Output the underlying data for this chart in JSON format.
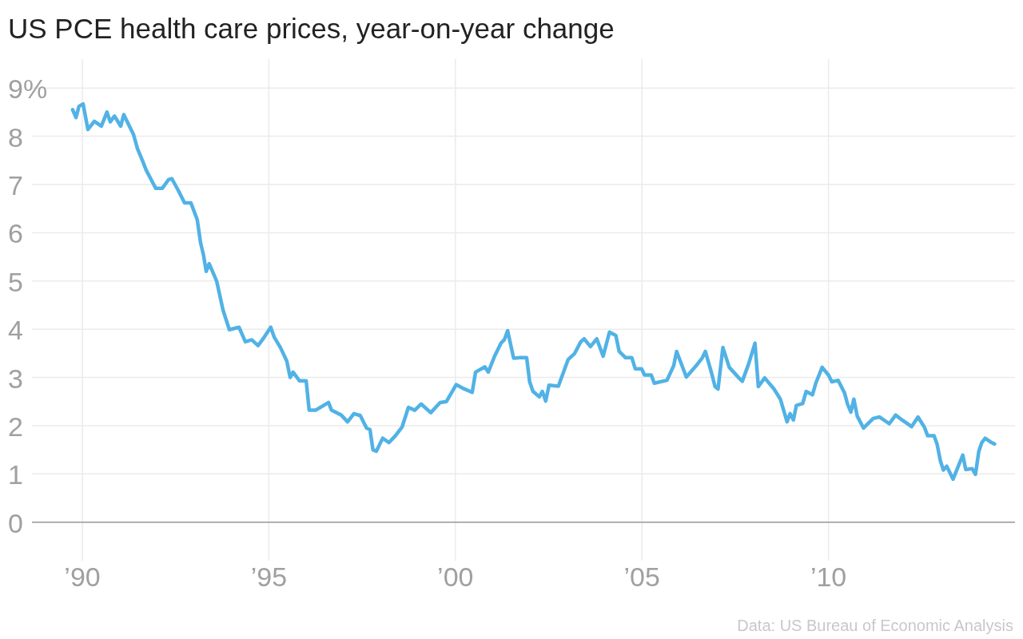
{
  "chart_data": {
    "type": "line",
    "title": "US PCE health care prices, year-on-year change",
    "annotations": [
      "Data: US Bureau of Economic Analysis"
    ],
    "x": [
      1989.74,
      1989.83,
      1989.91,
      1990.02,
      1990.15,
      1990.32,
      1990.51,
      1990.66,
      1990.75,
      1990.86,
      1991.03,
      1991.11,
      1991.37,
      1991.48,
      1991.63,
      1991.71,
      1991.88,
      1991.97,
      1992.14,
      1992.31,
      1992.4,
      1992.57,
      1992.74,
      1992.91,
      1993.08,
      1993.17,
      1993.25,
      1993.32,
      1993.4,
      1993.6,
      1993.77,
      1993.94,
      1994.2,
      1994.37,
      1994.54,
      1994.71,
      1994.88,
      1995.05,
      1995.14,
      1995.31,
      1995.48,
      1995.57,
      1995.65,
      1995.82,
      1996.0,
      1996.08,
      1996.25,
      1996.6,
      1996.68,
      1996.94,
      1997.11,
      1997.28,
      1997.45,
      1997.62,
      1997.71,
      1997.79,
      1997.88,
      1998.05,
      1998.22,
      1998.39,
      1998.57,
      1998.74,
      1998.91,
      1999.08,
      1999.34,
      1999.59,
      1999.76,
      1999.94,
      2000.02,
      2000.19,
      2000.45,
      2000.54,
      2000.79,
      2000.88,
      2001.05,
      2001.22,
      2001.31,
      2001.4,
      2001.56,
      2001.73,
      2001.91,
      2001.99,
      2002.08,
      2002.25,
      2002.33,
      2002.42,
      2002.51,
      2002.76,
      2003.02,
      2003.19,
      2003.36,
      2003.45,
      2003.62,
      2003.79,
      2003.96,
      2004.13,
      2004.3,
      2004.39,
      2004.56,
      2004.73,
      2004.82,
      2004.99,
      2005.07,
      2005.25,
      2005.33,
      2005.67,
      2005.85,
      2005.93,
      2006.19,
      2006.45,
      2006.62,
      2006.7,
      2006.87,
      2006.96,
      2007.04,
      2007.17,
      2007.34,
      2007.6,
      2007.69,
      2007.86,
      2008.03,
      2008.12,
      2008.29,
      2008.54,
      2008.71,
      2008.89,
      2008.97,
      2009.06,
      2009.14,
      2009.31,
      2009.4,
      2009.57,
      2009.66,
      2009.83,
      2010.0,
      2010.09,
      2010.26,
      2010.43,
      2010.51,
      2010.6,
      2010.68,
      2010.77,
      2010.94,
      2011.2,
      2011.37,
      2011.63,
      2011.8,
      2011.97,
      2012.23,
      2012.4,
      2012.57,
      2012.66,
      2012.83,
      2012.91,
      2013.0,
      2013.08,
      2013.17,
      2013.34,
      2013.6,
      2013.68,
      2013.85,
      2013.94,
      2014.03,
      2014.11,
      2014.2,
      2014.37,
      2014.45
    ],
    "series": [
      {
        "color": "#51b2e5",
        "values": [
          8.55,
          8.39,
          8.62,
          8.67,
          8.14,
          8.31,
          8.21,
          8.5,
          8.3,
          8.42,
          8.21,
          8.45,
          8.04,
          7.74,
          7.46,
          7.3,
          7.05,
          6.92,
          6.92,
          7.1,
          7.12,
          6.88,
          6.62,
          6.62,
          6.27,
          5.79,
          5.53,
          5.2,
          5.36,
          5.0,
          4.4,
          3.99,
          4.04,
          3.74,
          3.78,
          3.66,
          3.84,
          4.04,
          3.84,
          3.62,
          3.34,
          3.0,
          3.11,
          2.93,
          2.93,
          2.32,
          2.32,
          2.48,
          2.32,
          2.22,
          2.08,
          2.25,
          2.21,
          1.95,
          1.92,
          1.5,
          1.47,
          1.74,
          1.65,
          1.79,
          1.97,
          2.38,
          2.32,
          2.45,
          2.27,
          2.48,
          2.5,
          2.74,
          2.85,
          2.78,
          2.69,
          3.11,
          3.22,
          3.11,
          3.44,
          3.71,
          3.78,
          3.97,
          3.4,
          3.41,
          3.41,
          2.91,
          2.71,
          2.6,
          2.71,
          2.51,
          2.84,
          2.82,
          3.37,
          3.49,
          3.74,
          3.8,
          3.64,
          3.8,
          3.44,
          3.94,
          3.87,
          3.54,
          3.41,
          3.41,
          3.18,
          3.18,
          3.05,
          3.05,
          2.88,
          2.94,
          3.24,
          3.54,
          3.01,
          3.24,
          3.41,
          3.54,
          3.08,
          2.81,
          2.76,
          3.62,
          3.21,
          2.99,
          2.92,
          3.28,
          3.71,
          2.81,
          2.99,
          2.76,
          2.55,
          2.08,
          2.25,
          2.12,
          2.42,
          2.46,
          2.71,
          2.64,
          2.88,
          3.21,
          3.05,
          2.91,
          2.94,
          2.68,
          2.45,
          2.28,
          2.55,
          2.2,
          1.95,
          2.15,
          2.18,
          2.04,
          2.22,
          2.12,
          1.98,
          2.18,
          1.97,
          1.79,
          1.79,
          1.62,
          1.27,
          1.08,
          1.16,
          0.89,
          1.39,
          1.09,
          1.11,
          0.99,
          1.47,
          1.65,
          1.74,
          1.65,
          1.62
        ]
      }
    ],
    "xlim": [
      1988.65,
      2015
    ],
    "xticks": [
      {
        "value": 1990,
        "label": "’90"
      },
      {
        "value": 1995,
        "label": "’95"
      },
      {
        "value": 2000,
        "label": "’00"
      },
      {
        "value": 2005,
        "label": "’05"
      },
      {
        "value": 2010,
        "label": "’10"
      }
    ],
    "ylim": [
      -0.8,
      9.6
    ],
    "yticks": [
      0,
      1,
      2,
      3,
      4,
      5,
      6,
      7,
      8,
      {
        "value": 9,
        "label": "9%"
      }
    ],
    "grid": true,
    "marker": "none",
    "line_style": "solid"
  }
}
